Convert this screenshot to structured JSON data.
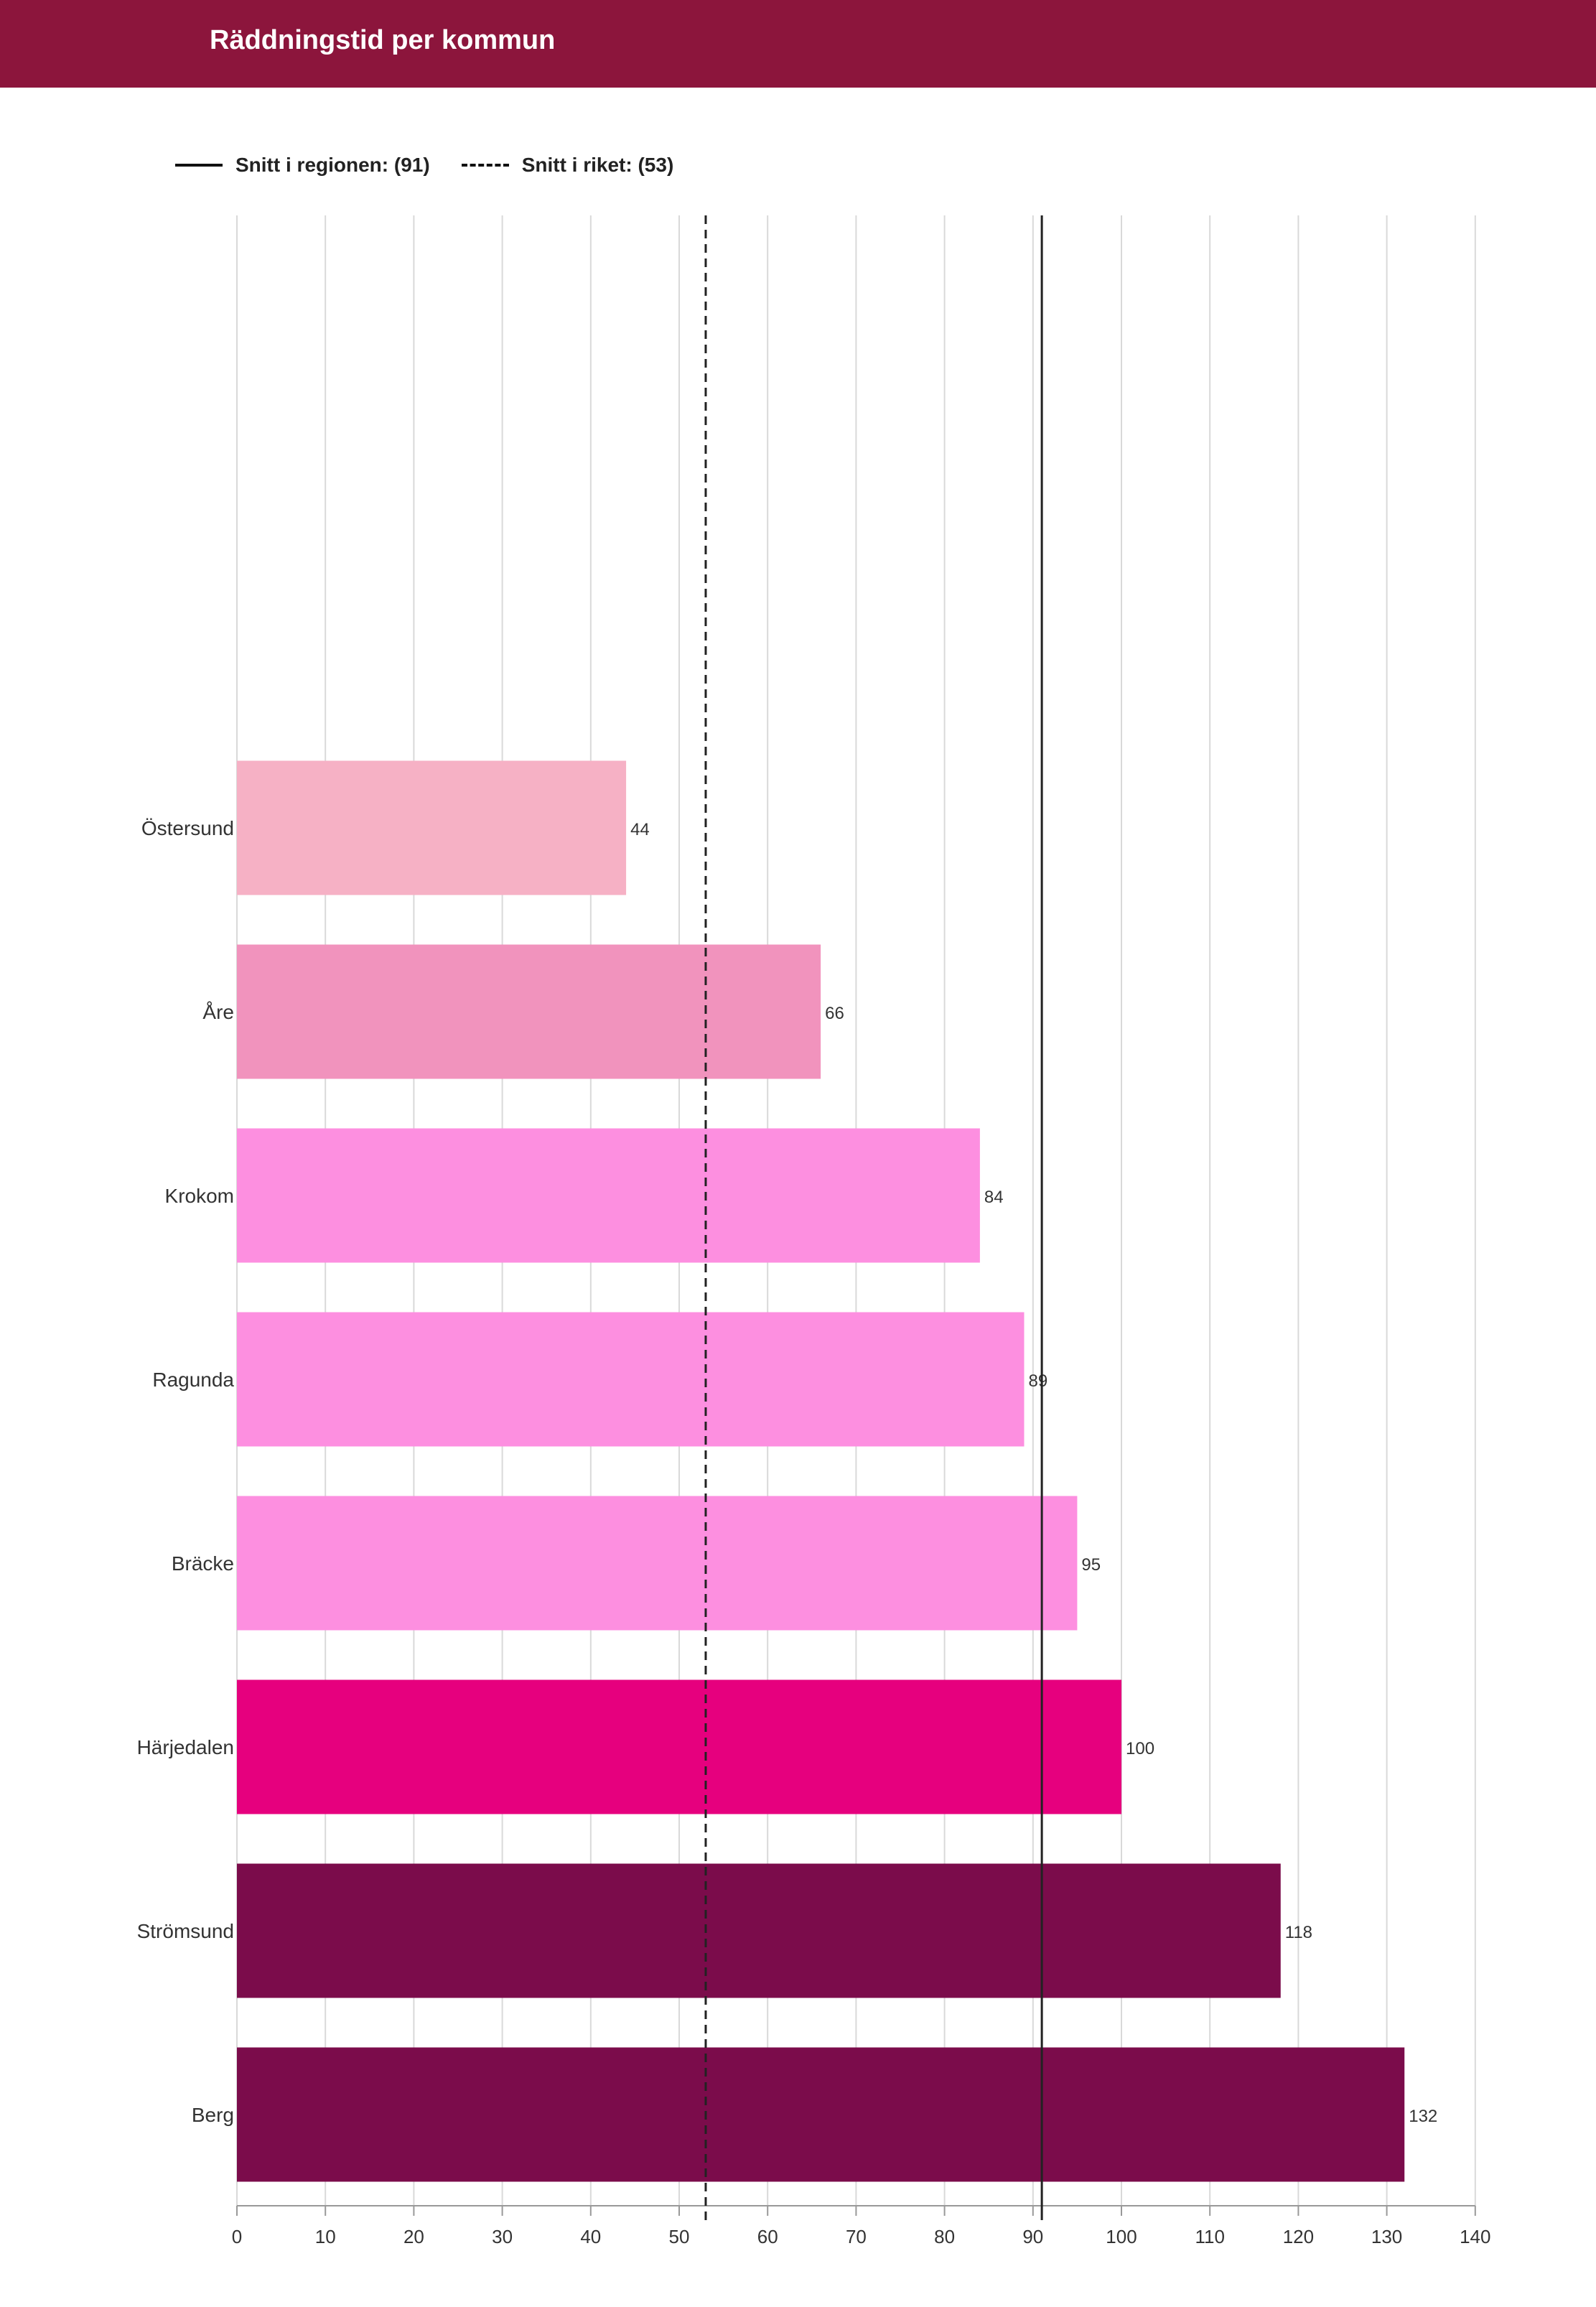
{
  "header": {
    "title": "Räddningstid per kommun"
  },
  "legend": {
    "regional_label": "Snitt i regionen: (91)",
    "national_label": "Snitt i riket: (53)"
  },
  "chart_data": {
    "type": "bar",
    "orientation": "horizontal",
    "title": "Räddningstid per kommun",
    "categories": [
      "Östersund",
      "Åre",
      "Krokom",
      "Ragunda",
      "Bräcke",
      "Härjedalen",
      "Strömsund",
      "Berg"
    ],
    "values": [
      44,
      66,
      84,
      89,
      95,
      100,
      118,
      132
    ],
    "display_labels": [
      "44",
      "66",
      "84",
      "89",
      "95",
      "100",
      "118",
      "132"
    ],
    "bar_colors": [
      "#f6b1c5",
      "#f193bd",
      "#fd8fe0",
      "#fd8fe0",
      "#fd8fe0",
      "#e6007e",
      "#7b0c4b",
      "#7b0c4b"
    ],
    "xlim": [
      0,
      140
    ],
    "xticks": [
      0,
      10,
      20,
      30,
      40,
      50,
      60,
      70,
      80,
      90,
      100,
      110,
      120,
      130,
      140
    ],
    "grid": true,
    "reference_lines": [
      {
        "name": "Snitt i regionen",
        "value": 91,
        "style": "solid",
        "color": "#222222"
      },
      {
        "name": "Snitt i riket",
        "value": 53,
        "style": "dashed",
        "color": "#222222"
      }
    ],
    "legend_position": "top-left",
    "xlabel": "",
    "ylabel": ""
  }
}
